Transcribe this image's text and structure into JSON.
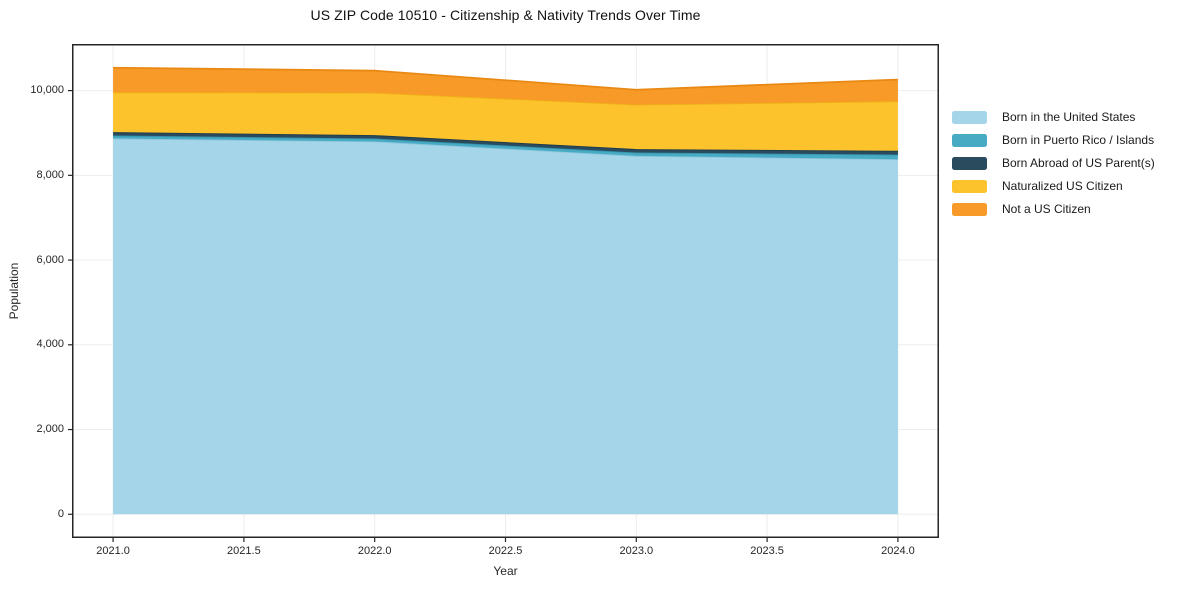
{
  "chart_data": {
    "type": "area",
    "stacked": true,
    "title": "US ZIP Code 10510 - Citizenship & Nativity Trends Over Time",
    "xlabel": "Year",
    "ylabel": "Population",
    "x": [
      2021,
      2022,
      2023,
      2024
    ],
    "series": [
      {
        "name": "Born in the United States",
        "color": "#a5d5e8",
        "edge": "#8fc7df",
        "values": [
          8870,
          8800,
          8460,
          8380
        ]
      },
      {
        "name": "Born in Puerto Rico / Islands",
        "color": "#48abc4",
        "edge": "#3693ac",
        "values": [
          70,
          70,
          80,
          110
        ]
      },
      {
        "name": "Born Abroad of US Parent(s)",
        "color": "#2a4a5e",
        "edge": "#1f3c4d",
        "values": [
          80,
          80,
          80,
          90
        ]
      },
      {
        "name": "Naturalized US Citizen",
        "color": "#fcc32d",
        "edge": "#efb117",
        "values": [
          940,
          1000,
          1050,
          1170
        ]
      },
      {
        "name": "Not a US Citizen",
        "color": "#f79a28",
        "edge": "#e98913",
        "values": [
          580,
          520,
          350,
          510
        ]
      }
    ],
    "xticks": [
      2021.0,
      2021.5,
      2022.0,
      2022.5,
      2023.0,
      2023.5,
      2024.0
    ],
    "yticks": [
      0,
      2000,
      4000,
      6000,
      8000,
      10000
    ],
    "xlim": [
      2020.843,
      2024.157
    ],
    "ylim": [
      -560,
      11100
    ],
    "grid": true,
    "legend_position": "right"
  },
  "style_colors": {
    "grid": "#ededed",
    "spine": "#262626",
    "tick": "#262626",
    "background": "#ffffff"
  }
}
